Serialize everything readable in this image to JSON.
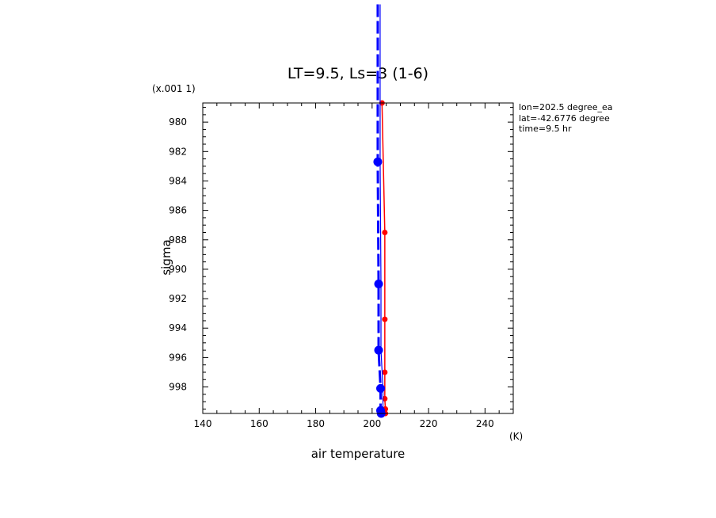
{
  "chart_data": {
    "type": "line",
    "title": "LT=9.5, Ls=3 (1-6)",
    "xlabel": "air temperature",
    "xunit": "(K)",
    "ylabel": "sigma",
    "yscale_note": "(x.001 1)",
    "xlim": [
      140,
      250
    ],
    "ylim": [
      999.8,
      978.7
    ],
    "xticks": [
      140,
      160,
      180,
      200,
      220,
      240
    ],
    "yticks": [
      980,
      982,
      984,
      986,
      988,
      990,
      992,
      994,
      996,
      998
    ],
    "grid": false,
    "annotations": [
      "lon=202.5 degree_ea",
      "lat=-42.6776 degree",
      "time=9.5 hr"
    ],
    "series": [
      {
        "color": "#ff0000",
        "style": "solid",
        "x": [
          203.5,
          204.5,
          204.5,
          204.5,
          204.5,
          204.7,
          204.7
        ],
        "y": [
          978.7,
          987.5,
          993.4,
          997.0,
          998.8,
          999.5,
          999.8
        ]
      },
      {
        "color": "#0000ff",
        "style": "dashed",
        "x": [
          202.0,
          202.0,
          202.3,
          202.3,
          203.0,
          203.0,
          203.2
        ],
        "y": [
          972.0,
          982.7,
          991.0,
          995.5,
          998.1,
          999.6,
          999.8
        ]
      }
    ]
  }
}
